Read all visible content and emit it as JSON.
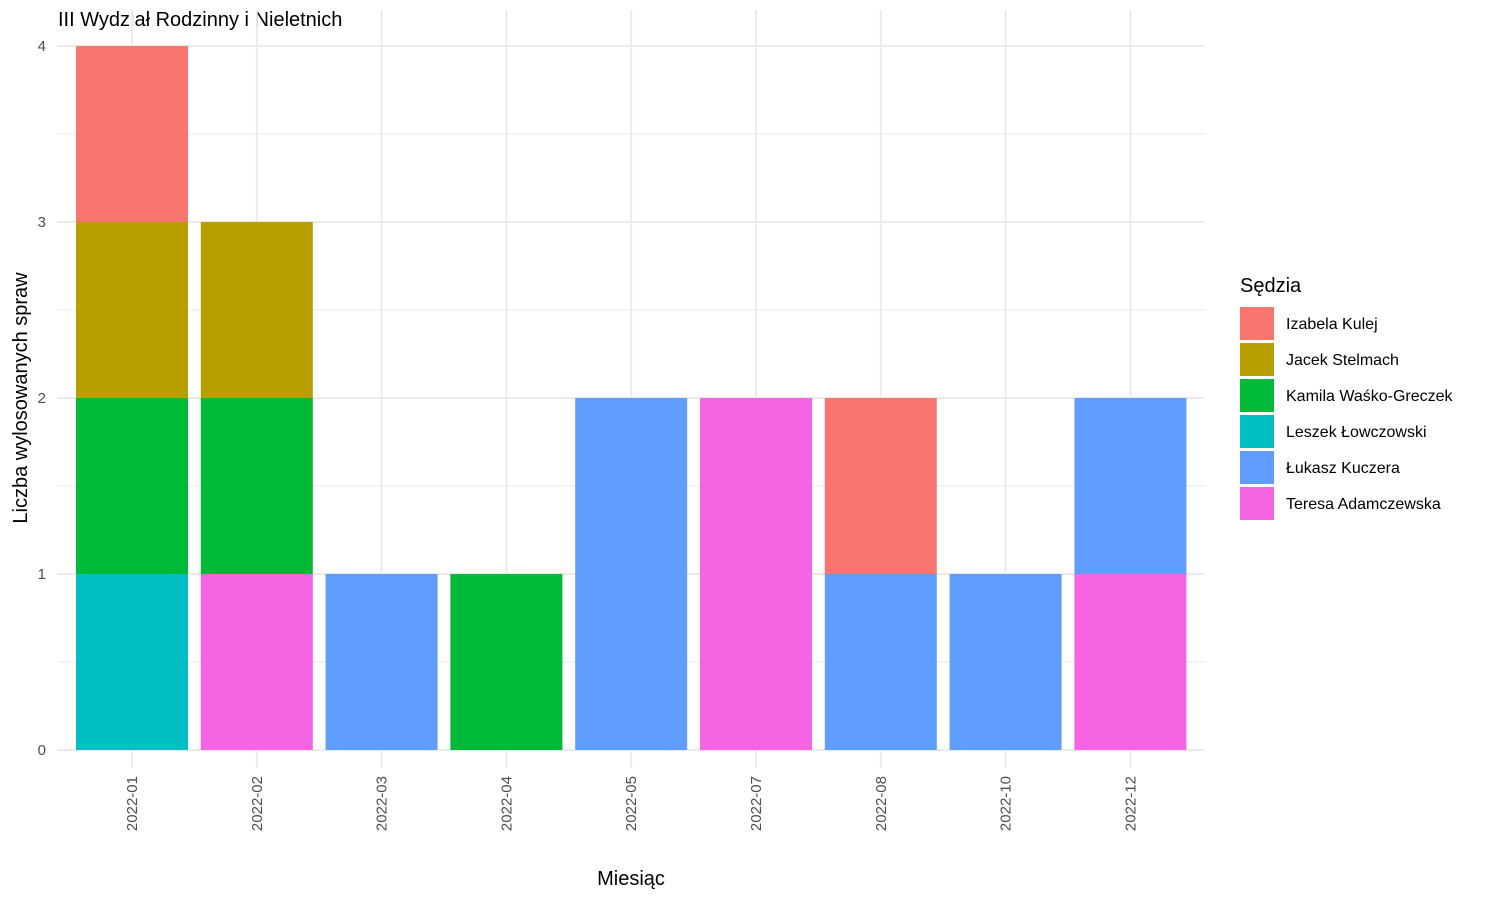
{
  "chart_data": {
    "type": "bar",
    "stacked": true,
    "title": "III Wydział Rodzinny i Nieletnich",
    "xlabel": "Miesiąc",
    "ylabel": "Liczba wylosowanych spraw",
    "ylim": [
      0,
      4
    ],
    "yticks": [
      "0",
      "1",
      "2",
      "3",
      "4"
    ],
    "grid": true,
    "legend_position": "right",
    "legend_title": "Sędzia",
    "categories": [
      "2022-01",
      "2022-02",
      "2022-03",
      "2022-04",
      "2022-05",
      "2022-07",
      "2022-08",
      "2022-10",
      "2022-12"
    ],
    "series": [
      {
        "name": "Izabela Kulej",
        "color": "#F8766D",
        "values": [
          1,
          0,
          0,
          0,
          0,
          0,
          1,
          0,
          0
        ]
      },
      {
        "name": "Jacek Stelmach",
        "color": "#B79F00",
        "values": [
          1,
          1,
          0,
          0,
          0,
          0,
          0,
          0,
          0
        ]
      },
      {
        "name": "Kamila Waśko-Greczek",
        "color": "#00BA38",
        "values": [
          1,
          1,
          0,
          1,
          0,
          0,
          0,
          0,
          0
        ]
      },
      {
        "name": "Leszek Łowczowski",
        "color": "#00BFC4",
        "values": [
          1,
          0,
          0,
          0,
          0,
          0,
          0,
          0,
          0
        ]
      },
      {
        "name": "Łukasz Kuczera",
        "color": "#619CFF",
        "values": [
          0,
          0,
          1,
          0,
          2,
          0,
          1,
          1,
          1
        ]
      },
      {
        "name": "Teresa Adamczewska",
        "color": "#F564E3",
        "values": [
          0,
          1,
          0,
          0,
          0,
          2,
          0,
          0,
          1
        ]
      }
    ]
  }
}
